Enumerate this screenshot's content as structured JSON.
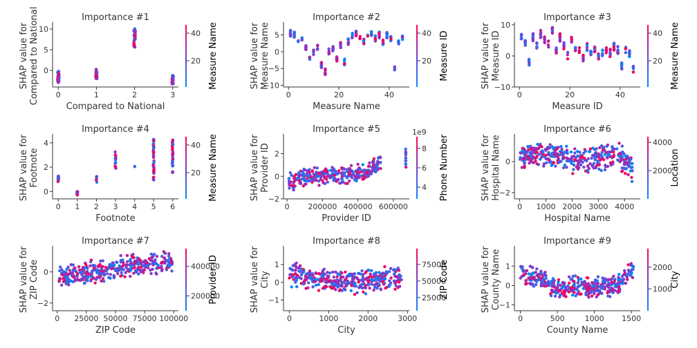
{
  "chart_data": [
    {
      "type": "scatter",
      "title": "Importance #1",
      "xlabel": "Compared to National",
      "ylabel": [
        "SHAP value for",
        "Compared to National"
      ],
      "xlim": [
        -0.15,
        3.15
      ],
      "ylim": [
        -4,
        11
      ],
      "xticks": [
        0,
        1,
        2,
        3
      ],
      "xtick_labels": [
        "0",
        "1",
        "2",
        "3"
      ],
      "yticks": [
        0,
        5,
        10
      ],
      "ytick_labels": [
        "0",
        "5",
        "10"
      ],
      "colorbar": {
        "label": "Measure Name",
        "range": [
          1,
          46
        ],
        "ticks": [
          20,
          40
        ],
        "tick_labels": [
          "20",
          "40"
        ]
      },
      "gen": {
        "kind": "categorical",
        "clusters": [
          {
            "x": 0,
            "ymin": -3.2,
            "ymax": -0.2,
            "n": 40
          },
          {
            "x": 1,
            "ymin": -2.0,
            "ymax": 0.3,
            "n": 35
          },
          {
            "x": 2,
            "ymin": 5.5,
            "ymax": 10.5,
            "n": 40
          },
          {
            "x": 3,
            "ymin": -3.3,
            "ymax": -1.0,
            "n": 30
          }
        ]
      }
    },
    {
      "type": "scatter",
      "title": "Importance #2",
      "xlabel": "Measure Name",
      "ylabel": [
        "SHAP value for",
        "Measure Name"
      ],
      "xlim": [
        -2,
        48
      ],
      "ylim": [
        -10.5,
        8
      ],
      "xticks": [
        0,
        20,
        40
      ],
      "xtick_labels": [
        "0",
        "20",
        "40"
      ],
      "yticks": [
        -10,
        -5,
        0,
        5
      ],
      "ytick_labels": [
        "−10",
        "−5",
        "0",
        "5"
      ],
      "colorbar": {
        "label": "Measure ID",
        "range": [
          1,
          46
        ],
        "ticks": [
          20,
          40
        ],
        "tick_labels": [
          "20",
          "40"
        ]
      },
      "gen": {
        "kind": "strips",
        "xmin": 0,
        "xmax": 46,
        "centers": [
          5.5,
          5,
          3.5,
          4,
          1,
          -2,
          0,
          1.5,
          -4,
          -6,
          0,
          1,
          -2,
          2,
          -3,
          3,
          5,
          5.5,
          4,
          3,
          5,
          5.5,
          4,
          5,
          3,
          5,
          4,
          -5,
          3,
          4
        ],
        "spread": 1.8,
        "n": 220
      }
    },
    {
      "type": "scatter",
      "title": "Importance #3",
      "xlabel": "Measure ID",
      "ylabel": [
        "SHAP value for",
        "Measure ID"
      ],
      "xlim": [
        -2,
        48
      ],
      "ylim": [
        -10,
        10
      ],
      "xticks": [
        0,
        20,
        40
      ],
      "xtick_labels": [
        "0",
        "20",
        "40"
      ],
      "yticks": [
        -10,
        0,
        10
      ],
      "ytick_labels": [
        "−10",
        "0",
        "10"
      ],
      "colorbar": {
        "label": "Measure Name",
        "range": [
          1,
          46
        ],
        "ticks": [
          20,
          40
        ],
        "tick_labels": [
          "20",
          "40"
        ]
      },
      "gen": {
        "kind": "strips",
        "xmin": 0,
        "xmax": 46,
        "centers": [
          6,
          4,
          -2,
          6,
          3,
          7,
          5,
          4,
          8,
          2,
          6,
          3,
          0,
          5,
          2,
          2,
          -1,
          3,
          1,
          2,
          0,
          1,
          2,
          1,
          3,
          2,
          -3,
          2,
          1,
          -4
        ],
        "spread": 2.5,
        "n": 220
      }
    },
    {
      "type": "scatter",
      "title": "Importance #4",
      "xlabel": "Footnote",
      "ylabel": [
        "SHAP value for",
        "Footnote"
      ],
      "xlim": [
        -0.3,
        6.3
      ],
      "ylim": [
        -0.6,
        4.5
      ],
      "xticks": [
        0,
        1,
        2,
        3,
        4,
        5,
        6
      ],
      "xtick_labels": [
        "0",
        "1",
        "2",
        "3",
        "4",
        "5",
        "6"
      ],
      "yticks": [
        0,
        2,
        4
      ],
      "ytick_labels": [
        "0",
        "2",
        "4"
      ],
      "colorbar": {
        "label": "Measure Name",
        "range": [
          1,
          46
        ],
        "ticks": [
          20,
          40
        ],
        "tick_labels": [
          "20",
          "40"
        ]
      },
      "gen": {
        "kind": "categorical",
        "clusters": [
          {
            "x": 0,
            "ymin": 0.8,
            "ymax": 1.3,
            "n": 14
          },
          {
            "x": 1,
            "ymin": -0.3,
            "ymax": 0.0,
            "n": 14
          },
          {
            "x": 2,
            "ymin": 0.7,
            "ymax": 1.4,
            "n": 8
          },
          {
            "x": 3,
            "ymin": 1.9,
            "ymax": 3.3,
            "n": 14
          },
          {
            "x": 4,
            "ymin": 2.0,
            "ymax": 2.2,
            "n": 2
          },
          {
            "x": 5,
            "ymin": 0.7,
            "ymax": 4.3,
            "n": 45
          },
          {
            "x": 6,
            "ymin": 1.3,
            "ymax": 4.3,
            "n": 35
          }
        ]
      }
    },
    {
      "type": "scatter",
      "title": "Importance #5",
      "xlabel": "Provider ID",
      "ylabel": [
        "SHAP value for",
        "Provider ID"
      ],
      "xlim": [
        -20000,
        690000
      ],
      "ylim": [
        -2,
        3.5
      ],
      "xticks": [
        0,
        200000,
        400000,
        600000
      ],
      "xtick_labels": [
        "0",
        "200000",
        "400000",
        "600000"
      ],
      "yticks": [
        -2,
        0,
        2
      ],
      "ytick_labels": [
        "−2",
        "0",
        "2"
      ],
      "colorbar": {
        "label": "Phone Number",
        "range": [
          2.8,
          9.2
        ],
        "ticks": [
          4,
          6,
          8
        ],
        "tick_labels": [
          "4",
          "6",
          "8"
        ],
        "offset": "1e9"
      },
      "gen": {
        "kind": "trend",
        "xmin": 10000,
        "xmax": 530000,
        "pts": [
          [
            10000,
            -0.5
          ],
          [
            150000,
            0
          ],
          [
            300000,
            0.1
          ],
          [
            430000,
            0.3
          ],
          [
            530000,
            1.2
          ]
        ],
        "spread": 0.9,
        "n": 300,
        "extra": {
          "x": 670000,
          "ymin": 0.7,
          "ymax": 2.5,
          "n": 12
        }
      }
    },
    {
      "type": "scatter",
      "title": "Importance #6",
      "xlabel": "Hospital Name",
      "ylabel": [
        "SHAP value for",
        "Hospital Name"
      ],
      "xlim": [
        -200,
        4600
      ],
      "ylim": [
        -2.4,
        1.6
      ],
      "xticks": [
        0,
        1000,
        2000,
        3000,
        4000
      ],
      "xtick_labels": [
        "0",
        "1000",
        "2000",
        "3000",
        "4000"
      ],
      "yticks": [
        -2,
        0
      ],
      "ytick_labels": [
        "−2",
        "0"
      ],
      "colorbar": {
        "label": "Location",
        "range": [
          0,
          4400
        ],
        "ticks": [
          2000,
          4000
        ],
        "tick_labels": [
          "2000",
          "4000"
        ]
      },
      "gen": {
        "kind": "trend",
        "xmin": 0,
        "xmax": 4300,
        "pts": [
          [
            0,
            0.3
          ],
          [
            1000,
            0.6
          ],
          [
            2000,
            0.1
          ],
          [
            3000,
            0.2
          ],
          [
            3700,
            0.5
          ],
          [
            4300,
            -0.5
          ]
        ],
        "spread": 0.9,
        "n": 380
      }
    },
    {
      "type": "scatter",
      "title": "Importance #7",
      "xlabel": "ZIP Code",
      "ylabel": [
        "SHAP value for",
        "ZIP Code"
      ],
      "xlim": [
        -4000,
        104000
      ],
      "ylim": [
        -2.5,
        1.5
      ],
      "xticks": [
        0,
        25000,
        50000,
        75000,
        100000
      ],
      "xtick_labels": [
        "0",
        "25000",
        "50000",
        "75000",
        "100000"
      ],
      "yticks": [
        -2,
        0
      ],
      "ytick_labels": [
        "−2",
        "0"
      ],
      "colorbar": {
        "label": "Provider ID",
        "range": [
          100000,
          520000
        ],
        "ticks": [
          200000,
          400000
        ],
        "tick_labels": [
          "200000",
          "400000"
        ]
      },
      "gen": {
        "kind": "trend",
        "xmin": 1000,
        "xmax": 99000,
        "pts": [
          [
            1000,
            -0.3
          ],
          [
            20000,
            -0.1
          ],
          [
            40000,
            0.1
          ],
          [
            60000,
            0.4
          ],
          [
            80000,
            0.5
          ],
          [
            99000,
            0.6
          ]
        ],
        "spread": 0.8,
        "n": 380
      }
    },
    {
      "type": "scatter",
      "title": "Importance #8",
      "xlabel": "City",
      "ylabel": [
        "SHAP value for",
        "City"
      ],
      "xlim": [
        -150,
        3050
      ],
      "ylim": [
        -1.6,
        1.9
      ],
      "xticks": [
        0,
        1000,
        2000,
        3000
      ],
      "xtick_labels": [
        "0",
        "1000",
        "2000",
        "3000"
      ],
      "yticks": [
        -1,
        0,
        1
      ],
      "ytick_labels": [
        "−1",
        "0",
        "1"
      ],
      "colorbar": {
        "label": "ZIP Code",
        "range": [
          5000,
          99000
        ],
        "ticks": [
          25000,
          50000,
          75000
        ],
        "tick_labels": [
          "25000",
          "50000",
          "75000"
        ]
      },
      "gen": {
        "kind": "trend",
        "xmin": 0,
        "xmax": 2850,
        "pts": [
          [
            0,
            0.4
          ],
          [
            700,
            0.2
          ],
          [
            1400,
            0.0
          ],
          [
            2100,
            0.1
          ],
          [
            2850,
            0.2
          ]
        ],
        "spread": 0.75,
        "n": 380
      }
    },
    {
      "type": "scatter",
      "title": "Importance #9",
      "xlabel": "County Name",
      "ylabel": [
        "SHAP value for",
        "County Name"
      ],
      "xlim": [
        -80,
        1620
      ],
      "ylim": [
        -1.3,
        1.9
      ],
      "xticks": [
        0,
        500,
        1000,
        1500
      ],
      "xtick_labels": [
        "0",
        "500",
        "1000",
        "1500"
      ],
      "yticks": [
        -1,
        0,
        1
      ],
      "ytick_labels": [
        "−1",
        "0",
        "1"
      ],
      "colorbar": {
        "label": "City",
        "range": [
          0,
          2850
        ],
        "ticks": [
          1000,
          2000
        ],
        "tick_labels": [
          "1000",
          "2000"
        ]
      },
      "gen": {
        "kind": "trend",
        "xmin": 0,
        "xmax": 1530,
        "pts": [
          [
            0,
            0.5
          ],
          [
            300,
            0.4
          ],
          [
            400,
            -0.2
          ],
          [
            700,
            0.0
          ],
          [
            1000,
            -0.1
          ],
          [
            1300,
            0.0
          ],
          [
            1530,
            0.9
          ]
        ],
        "spread": 0.6,
        "n": 380
      }
    }
  ],
  "colors": {
    "low": "#008afb",
    "mid": "#7c3cd3",
    "high": "#ff0052",
    "axis": "#333333"
  }
}
